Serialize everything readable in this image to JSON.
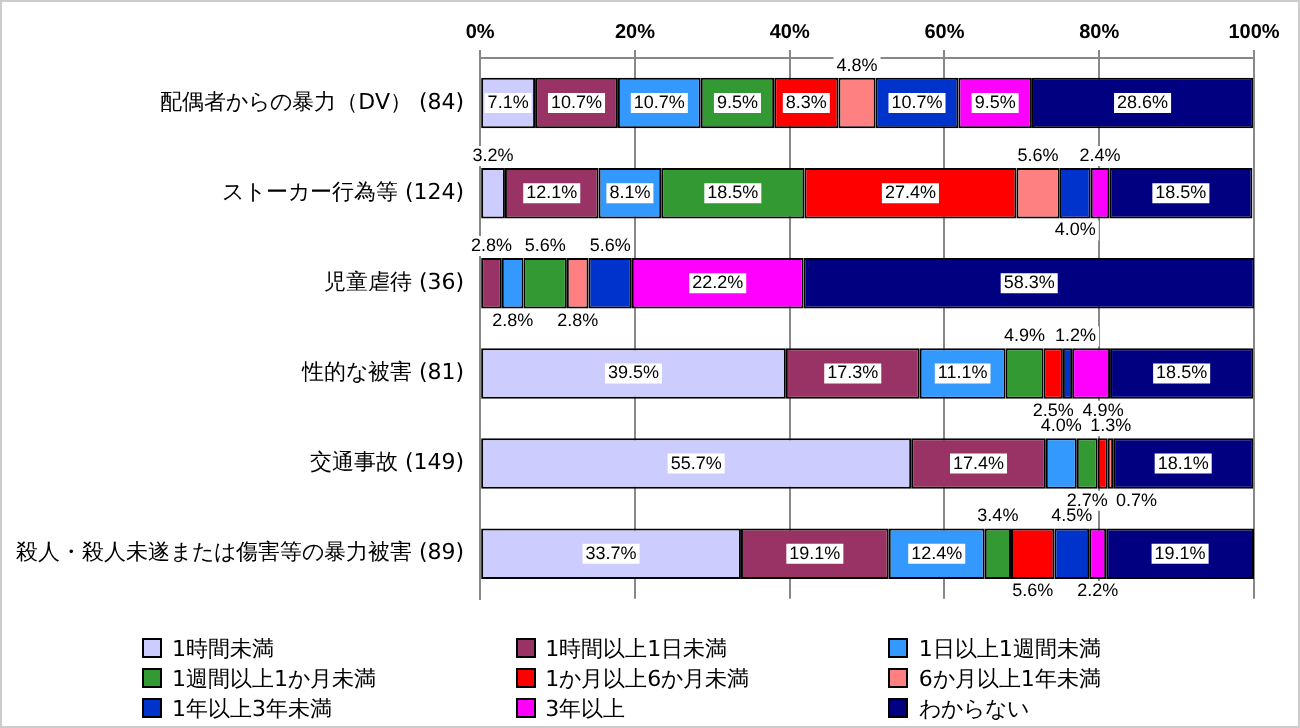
{
  "chart_data": {
    "type": "bar",
    "orientation": "horizontal",
    "stacked": true,
    "categories": [
      "配偶者からの暴力（DV） (84)",
      "ストーカー行為等 (124)",
      "児童虐待 (36)",
      "性的な被害 (81)",
      "交通事故 (149)",
      "殺人・殺人未遂または傷害等の暴力被害 (89)"
    ],
    "xlim": [
      0,
      100
    ],
    "xticks": [
      {
        "value": 0,
        "label": "0%"
      },
      {
        "value": 20,
        "label": "20%"
      },
      {
        "value": 40,
        "label": "40%"
      },
      {
        "value": 60,
        "label": "60%"
      },
      {
        "value": 80,
        "label": "80%"
      },
      {
        "value": 100,
        "label": "100%"
      }
    ],
    "grid": "x",
    "legend": "bottom",
    "series": [
      {
        "name": "1時間未満",
        "color": "#ccccff",
        "values": [
          7.1,
          3.2,
          0,
          39.5,
          55.7,
          33.7
        ],
        "value_labels": [
          "7.1%",
          "3.2%",
          null,
          "39.5%",
          "55.7%",
          "33.7%"
        ]
      },
      {
        "name": "1時間以上1日未満",
        "color": "#993366",
        "values": [
          10.7,
          12.1,
          2.8,
          17.3,
          17.4,
          19.1
        ],
        "value_labels": [
          "10.7%",
          "12.1%",
          "2.8%",
          "17.3%",
          "17.4%",
          "19.1%"
        ]
      },
      {
        "name": "1日以上1週間未満",
        "color": "#3399ff",
        "values": [
          10.7,
          8.1,
          2.8,
          11.1,
          4.0,
          12.4
        ],
        "value_labels": [
          "10.7%",
          "8.1%",
          "2.8%",
          "11.1%",
          "4.0%",
          "12.4%"
        ]
      },
      {
        "name": "1週間以上1か月未満",
        "color": "#339933",
        "values": [
          9.5,
          18.5,
          5.6,
          4.9,
          2.7,
          3.4
        ],
        "value_labels": [
          "9.5%",
          "18.5%",
          "5.6%",
          "4.9%",
          "2.7%",
          "3.4%"
        ]
      },
      {
        "name": "1か月以上6か月未満",
        "color": "#ff0000",
        "values": [
          8.3,
          27.4,
          0,
          2.5,
          1.3,
          5.6
        ],
        "value_labels": [
          "8.3%",
          "27.4%",
          null,
          "2.5%",
          "1.3%",
          "5.6%"
        ]
      },
      {
        "name": "6か月以上1年未満",
        "color": "#ff8080",
        "values": [
          4.8,
          5.6,
          2.8,
          0,
          0.7,
          0
        ],
        "value_labels": [
          "4.8%",
          "5.6%",
          "2.8%",
          null,
          "0.7%",
          null
        ]
      },
      {
        "name": "1年以上3年未満",
        "color": "#0033cc",
        "values": [
          10.7,
          4.0,
          5.6,
          1.2,
          0,
          4.5
        ],
        "value_labels": [
          "10.7%",
          "4.0%",
          "5.6%",
          "1.2%",
          null,
          "4.5%"
        ]
      },
      {
        "name": "3年以上",
        "color": "#ff00ff",
        "values": [
          9.5,
          2.4,
          22.2,
          4.9,
          0,
          2.2
        ],
        "value_labels": [
          "9.5%",
          "2.4%",
          "22.2%",
          "4.9%",
          null,
          "2.2%"
        ]
      },
      {
        "name": "わからない",
        "color": "#000080",
        "values": [
          28.6,
          18.5,
          58.3,
          18.5,
          18.1,
          19.1
        ],
        "value_labels": [
          "28.6%",
          "18.5%",
          "58.3%",
          "18.5%",
          "18.1%",
          "19.1%"
        ]
      }
    ]
  }
}
